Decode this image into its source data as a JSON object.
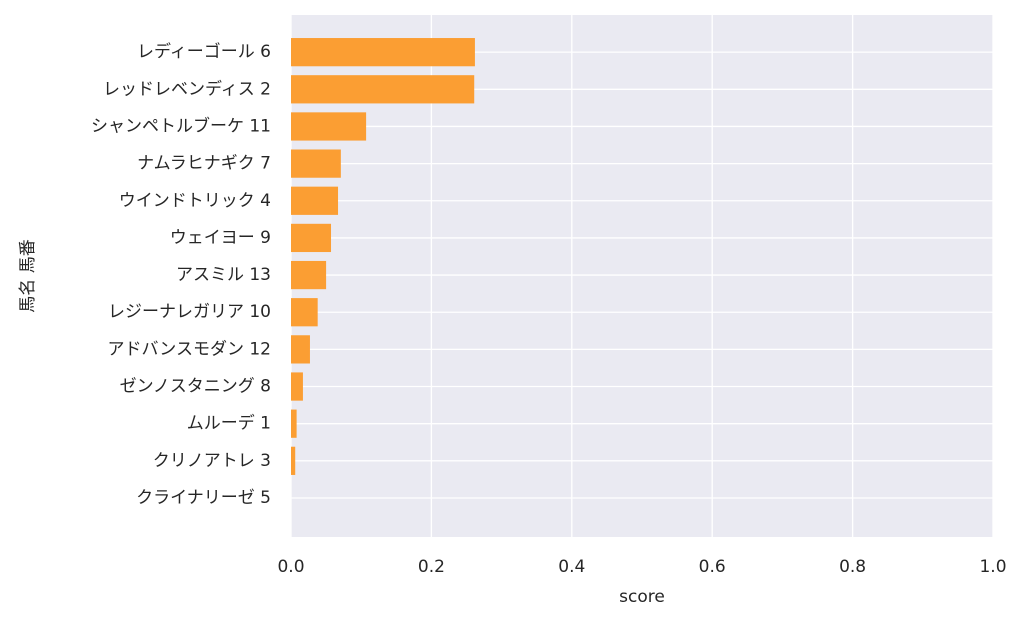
{
  "chart_data": {
    "type": "barh",
    "categories": [
      "レディーゴール 6",
      "レッドレベンディス 2",
      "シャンペトルブーケ 11",
      "ナムラヒナギク 7",
      "ウインドトリック 4",
      "ウェイヨー 9",
      "アスミル 13",
      "レジーナレガリア 10",
      "アドバンスモダン 12",
      "ゼンノスタニング 8",
      "ムルーデ 1",
      "クリノアトレ 3",
      "クライナリーゼ 5"
    ],
    "values": [
      0.262,
      0.261,
      0.107,
      0.071,
      0.067,
      0.057,
      0.05,
      0.038,
      0.027,
      0.017,
      0.008,
      0.006,
      0
    ],
    "color": "#fb9e33",
    "xlabel": "score",
    "ylabel": "馬名 馬番",
    "xlim": [
      0,
      1
    ],
    "xticks": [
      {
        "value": 0,
        "label": "0.0"
      },
      0.2,
      0.4,
      0.6,
      0.8,
      {
        "value": 1,
        "label": "1.0"
      }
    ],
    "grid": true
  }
}
